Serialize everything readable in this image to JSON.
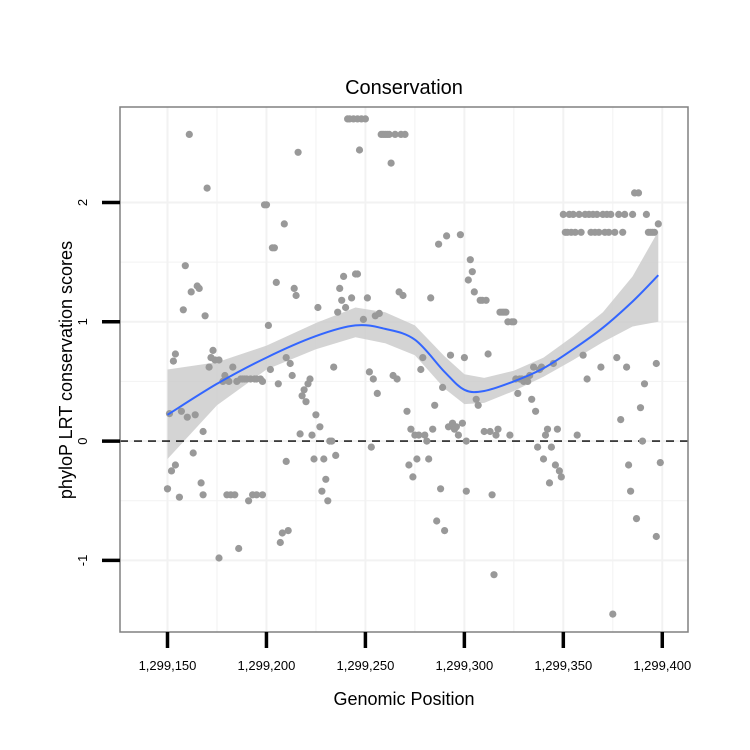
{
  "chart_data": {
    "type": "scatter",
    "title": "Conservation",
    "xlabel": "Genomic Position",
    "ylabel": "phyloP LRT conservation scores",
    "xlim": [
      1299126,
      1299413
    ],
    "ylim": [
      -1.6,
      2.8
    ],
    "x_ticks": [
      {
        "value": 1299150,
        "label": "1,299,150"
      },
      {
        "value": 1299200,
        "label": "1,299,200"
      },
      {
        "value": 1299250,
        "label": "1,299,250"
      },
      {
        "value": 1299300,
        "label": "1,299,300"
      },
      {
        "value": 1299350,
        "label": "1,299,350"
      },
      {
        "value": 1299400,
        "label": "1,299,400"
      }
    ],
    "y_ticks": [
      {
        "value": -1,
        "label": "-1"
      },
      {
        "value": 0,
        "label": "0"
      },
      {
        "value": 1,
        "label": "1"
      },
      {
        "value": 2,
        "label": "2"
      }
    ],
    "reference_line": {
      "y": 0,
      "style": "dashed"
    },
    "grid": true,
    "colors": {
      "points": "#999999",
      "smooth_line": "#3366ff",
      "confidence_band": "#cccccc",
      "panel_border": "#808080",
      "grid": "#f2f2f2"
    },
    "smooth": {
      "x": [
        1299150,
        1299175,
        1299200,
        1299225,
        1299245,
        1299260,
        1299275,
        1299290,
        1299300,
        1299310,
        1299325,
        1299340,
        1299355,
        1299370,
        1299385,
        1299398
      ],
      "y": [
        0.22,
        0.48,
        0.7,
        0.88,
        0.97,
        0.94,
        0.85,
        0.58,
        0.43,
        0.42,
        0.5,
        0.61,
        0.77,
        0.95,
        1.17,
        1.39
      ],
      "lower": [
        -0.15,
        0.3,
        0.6,
        0.77,
        0.87,
        0.82,
        0.72,
        0.44,
        0.31,
        0.32,
        0.42,
        0.54,
        0.68,
        0.83,
        0.96,
        1.0
      ],
      "upper": [
        0.6,
        0.66,
        0.8,
        0.99,
        1.12,
        1.08,
        0.97,
        0.71,
        0.56,
        0.53,
        0.59,
        0.7,
        0.88,
        1.08,
        1.38,
        1.76
      ]
    },
    "points": [
      [
        1299150,
        -0.4
      ],
      [
        1299150,
        -0.4
      ],
      [
        1299151,
        0.23
      ],
      [
        1299152,
        -0.25
      ],
      [
        1299153,
        0.67
      ],
      [
        1299154,
        0.73
      ],
      [
        1299154,
        -0.2
      ],
      [
        1299156,
        -0.47
      ],
      [
        1299157,
        0.25
      ],
      [
        1299158,
        1.1
      ],
      [
        1299159,
        1.47
      ],
      [
        1299160,
        0.2
      ],
      [
        1299161,
        2.57
      ],
      [
        1299162,
        1.25
      ],
      [
        1299163,
        -0.1
      ],
      [
        1299164,
        0.22
      ],
      [
        1299165,
        1.3
      ],
      [
        1299166,
        1.28
      ],
      [
        1299167,
        -0.35
      ],
      [
        1299168,
        0.08
      ],
      [
        1299168,
        -0.45
      ],
      [
        1299169,
        1.05
      ],
      [
        1299170,
        2.12
      ],
      [
        1299171,
        0.62
      ],
      [
        1299172,
        0.7
      ],
      [
        1299173,
        0.76
      ],
      [
        1299174,
        0.68
      ],
      [
        1299176,
        0.68
      ],
      [
        1299176,
        -0.98
      ],
      [
        1299178,
        0.5
      ],
      [
        1299179,
        0.55
      ],
      [
        1299180,
        -0.45
      ],
      [
        1299181,
        0.5
      ],
      [
        1299182,
        -0.45
      ],
      [
        1299183,
        0.62
      ],
      [
        1299184,
        -0.45
      ],
      [
        1299185,
        0.5
      ],
      [
        1299186,
        -0.9
      ],
      [
        1299187,
        0.52
      ],
      [
        1299188,
        0.52
      ],
      [
        1299189,
        0.52
      ],
      [
        1299190,
        0.52
      ],
      [
        1299191,
        -0.5
      ],
      [
        1299192,
        0.52
      ],
      [
        1299193,
        -0.45
      ],
      [
        1299194,
        0.52
      ],
      [
        1299195,
        0.52
      ],
      [
        1299195,
        -0.45
      ],
      [
        1299197,
        0.52
      ],
      [
        1299198,
        -0.45
      ],
      [
        1299198,
        0.5
      ],
      [
        1299199,
        1.98
      ],
      [
        1299200,
        1.98
      ],
      [
        1299201,
        0.97
      ],
      [
        1299202,
        0.6
      ],
      [
        1299203,
        1.62
      ],
      [
        1299204,
        1.62
      ],
      [
        1299205,
        1.33
      ],
      [
        1299206,
        0.48
      ],
      [
        1299207,
        -0.85
      ],
      [
        1299208,
        -0.77
      ],
      [
        1299209,
        1.82
      ],
      [
        1299210,
        0.7
      ],
      [
        1299210,
        -0.17
      ],
      [
        1299211,
        -0.75
      ],
      [
        1299212,
        0.65
      ],
      [
        1299213,
        0.55
      ],
      [
        1299214,
        1.28
      ],
      [
        1299215,
        1.22
      ],
      [
        1299216,
        2.42
      ],
      [
        1299217,
        0.06
      ],
      [
        1299218,
        0.38
      ],
      [
        1299219,
        0.43
      ],
      [
        1299220,
        0.33
      ],
      [
        1299221,
        0.48
      ],
      [
        1299222,
        0.52
      ],
      [
        1299223,
        0.05
      ],
      [
        1299224,
        -0.15
      ],
      [
        1299225,
        0.22
      ],
      [
        1299226,
        1.12
      ],
      [
        1299227,
        0.12
      ],
      [
        1299228,
        -0.42
      ],
      [
        1299229,
        -0.15
      ],
      [
        1299230,
        -0.32
      ],
      [
        1299231,
        -0.5
      ],
      [
        1299232,
        0.0
      ],
      [
        1299233,
        0.0
      ],
      [
        1299234,
        0.62
      ],
      [
        1299235,
        -0.12
      ],
      [
        1299236,
        1.08
      ],
      [
        1299237,
        1.28
      ],
      [
        1299238,
        1.18
      ],
      [
        1299239,
        1.38
      ],
      [
        1299240,
        1.12
      ],
      [
        1299241,
        2.7
      ],
      [
        1299242,
        2.7
      ],
      [
        1299243,
        1.2
      ],
      [
        1299244,
        2.7
      ],
      [
        1299245,
        1.4
      ],
      [
        1299246,
        1.4
      ],
      [
        1299246,
        2.7
      ],
      [
        1299247,
        2.44
      ],
      [
        1299248,
        2.7
      ],
      [
        1299249,
        1.02
      ],
      [
        1299250,
        2.7
      ],
      [
        1299251,
        1.2
      ],
      [
        1299252,
        0.58
      ],
      [
        1299253,
        -0.05
      ],
      [
        1299254,
        0.52
      ],
      [
        1299255,
        1.05
      ],
      [
        1299256,
        0.4
      ],
      [
        1299257,
        1.07
      ],
      [
        1299258,
        2.57
      ],
      [
        1299259,
        2.57
      ],
      [
        1299260,
        2.57
      ],
      [
        1299261,
        2.57
      ],
      [
        1299262,
        2.57
      ],
      [
        1299263,
        2.33
      ],
      [
        1299264,
        0.55
      ],
      [
        1299265,
        2.57
      ],
      [
        1299266,
        0.52
      ],
      [
        1299267,
        1.25
      ],
      [
        1299268,
        2.57
      ],
      [
        1299269,
        1.22
      ],
      [
        1299270,
        2.57
      ],
      [
        1299271,
        0.25
      ],
      [
        1299272,
        -0.2
      ],
      [
        1299273,
        0.1
      ],
      [
        1299274,
        -0.3
      ],
      [
        1299275,
        0.05
      ],
      [
        1299276,
        -0.15
      ],
      [
        1299277,
        0.05
      ],
      [
        1299278,
        0.6
      ],
      [
        1299279,
        0.7
      ],
      [
        1299280,
        0.05
      ],
      [
        1299281,
        0.0
      ],
      [
        1299282,
        -0.15
      ],
      [
        1299283,
        1.2
      ],
      [
        1299284,
        0.1
      ],
      [
        1299285,
        0.3
      ],
      [
        1299286,
        -0.67
      ],
      [
        1299287,
        1.65
      ],
      [
        1299288,
        -0.4
      ],
      [
        1299289,
        0.45
      ],
      [
        1299290,
        -0.75
      ],
      [
        1299291,
        1.72
      ],
      [
        1299292,
        0.12
      ],
      [
        1299293,
        0.72
      ],
      [
        1299294,
        0.15
      ],
      [
        1299295,
        0.1
      ],
      [
        1299296,
        0.12
      ],
      [
        1299297,
        0.05
      ],
      [
        1299298,
        1.73
      ],
      [
        1299299,
        0.15
      ],
      [
        1299300,
        0.7
      ],
      [
        1299301,
        0.0
      ],
      [
        1299301,
        -0.42
      ],
      [
        1299302,
        1.35
      ],
      [
        1299303,
        1.52
      ],
      [
        1299304,
        1.42
      ],
      [
        1299305,
        1.25
      ],
      [
        1299306,
        0.35
      ],
      [
        1299307,
        0.3
      ],
      [
        1299308,
        1.18
      ],
      [
        1299309,
        1.18
      ],
      [
        1299310,
        0.08
      ],
      [
        1299311,
        1.18
      ],
      [
        1299312,
        0.73
      ],
      [
        1299313,
        0.08
      ],
      [
        1299314,
        -0.45
      ],
      [
        1299315,
        -1.12
      ],
      [
        1299316,
        0.05
      ],
      [
        1299317,
        0.1
      ],
      [
        1299318,
        1.08
      ],
      [
        1299319,
        1.08
      ],
      [
        1299320,
        1.08
      ],
      [
        1299321,
        1.08
      ],
      [
        1299322,
        1.0
      ],
      [
        1299323,
        0.05
      ],
      [
        1299324,
        1.0
      ],
      [
        1299325,
        1.0
      ],
      [
        1299326,
        0.52
      ],
      [
        1299327,
        0.4
      ],
      [
        1299328,
        0.52
      ],
      [
        1299329,
        0.52
      ],
      [
        1299330,
        0.5
      ],
      [
        1299331,
        0.52
      ],
      [
        1299332,
        0.5
      ],
      [
        1299333,
        0.55
      ],
      [
        1299334,
        0.35
      ],
      [
        1299335,
        0.62
      ],
      [
        1299336,
        0.25
      ],
      [
        1299337,
        -0.05
      ],
      [
        1299338,
        0.6
      ],
      [
        1299339,
        0.62
      ],
      [
        1299340,
        -0.15
      ],
      [
        1299341,
        0.05
      ],
      [
        1299342,
        0.1
      ],
      [
        1299343,
        -0.35
      ],
      [
        1299344,
        -0.05
      ],
      [
        1299345,
        0.65
      ],
      [
        1299346,
        -0.2
      ],
      [
        1299347,
        0.1
      ],
      [
        1299348,
        -0.25
      ],
      [
        1299349,
        -0.3
      ],
      [
        1299350,
        1.9
      ],
      [
        1299351,
        1.75
      ],
      [
        1299352,
        1.75
      ],
      [
        1299353,
        1.9
      ],
      [
        1299354,
        1.75
      ],
      [
        1299355,
        1.9
      ],
      [
        1299356,
        1.75
      ],
      [
        1299357,
        0.05
      ],
      [
        1299358,
        1.9
      ],
      [
        1299359,
        1.75
      ],
      [
        1299360,
        0.72
      ],
      [
        1299361,
        1.9
      ],
      [
        1299362,
        0.52
      ],
      [
        1299363,
        1.9
      ],
      [
        1299364,
        1.75
      ],
      [
        1299365,
        1.9
      ],
      [
        1299366,
        1.75
      ],
      [
        1299367,
        1.9
      ],
      [
        1299368,
        1.75
      ],
      [
        1299369,
        0.62
      ],
      [
        1299370,
        1.9
      ],
      [
        1299371,
        1.75
      ],
      [
        1299372,
        1.9
      ],
      [
        1299373,
        1.75
      ],
      [
        1299374,
        1.9
      ],
      [
        1299375,
        -1.45
      ],
      [
        1299376,
        1.75
      ],
      [
        1299377,
        0.7
      ],
      [
        1299378,
        1.9
      ],
      [
        1299379,
        0.18
      ],
      [
        1299380,
        1.75
      ],
      [
        1299381,
        1.9
      ],
      [
        1299382,
        0.62
      ],
      [
        1299383,
        -0.2
      ],
      [
        1299384,
        -0.42
      ],
      [
        1299385,
        1.9
      ],
      [
        1299386,
        2.08
      ],
      [
        1299387,
        -0.65
      ],
      [
        1299388,
        2.08
      ],
      [
        1299389,
        0.28
      ],
      [
        1299390,
        0.0
      ],
      [
        1299391,
        0.48
      ],
      [
        1299392,
        1.9
      ],
      [
        1299393,
        1.75
      ],
      [
        1299394,
        1.75
      ],
      [
        1299395,
        1.75
      ],
      [
        1299396,
        1.75
      ],
      [
        1299397,
        0.65
      ],
      [
        1299397,
        -0.8
      ],
      [
        1299398,
        1.82
      ],
      [
        1299399,
        -0.18
      ]
    ]
  }
}
